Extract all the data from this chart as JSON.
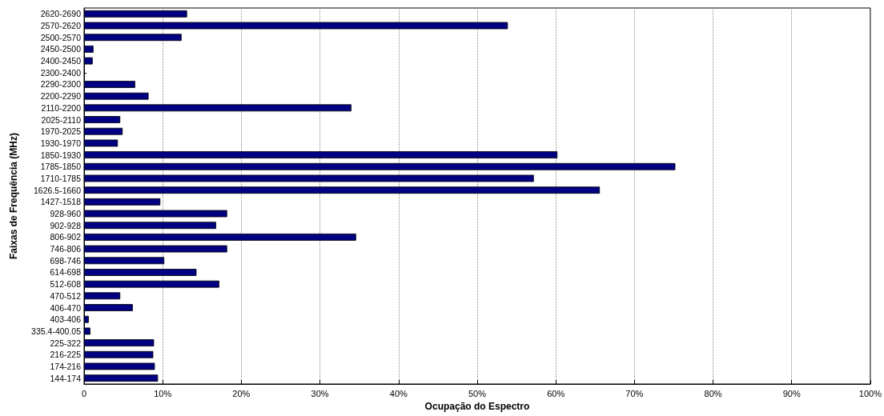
{
  "chart_data": {
    "type": "bar",
    "orientation": "horizontal",
    "xlabel": "Ocupação do Espectro",
    "ylabel": "Faixas de Frequência (MHz)",
    "categories": [
      "2620-2690",
      "2570-2620",
      "2500-2570",
      "2450-2500",
      "2400-2450",
      "2300-2400",
      "2290-2300",
      "2200-2290",
      "2110-2200",
      "2025-2110",
      "1970-2025",
      "1930-1970",
      "1850-1930",
      "1785-1850",
      "1710-1785",
      "1626.5-1660",
      "1427-1518",
      "928-960",
      "902-928",
      "806-902",
      "746-806",
      "698-746",
      "614-698",
      "512-608",
      "470-512",
      "406-470",
      "403-406",
      "335.4-400.05",
      "225-322",
      "216-225",
      "174-216",
      "144-174"
    ],
    "values": [
      13.1,
      53.9,
      12.4,
      1.2,
      1.1,
      0.1,
      6.5,
      8.2,
      34.0,
      4.6,
      4.9,
      4.3,
      60.2,
      75.2,
      57.2,
      65.6,
      9.7,
      18.2,
      16.8,
      34.6,
      18.2,
      10.2,
      14.3,
      17.2,
      4.6,
      6.2,
      0.6,
      0.8,
      8.9,
      8.8,
      9.0,
      9.4
    ],
    "color": "#000080",
    "xlim": [
      0,
      100
    ],
    "xticks": [
      0,
      {
        "value": 10,
        "label": "10%"
      },
      {
        "value": 20,
        "label": "20%"
      },
      {
        "value": 30,
        "label": "30%"
      },
      {
        "value": 40,
        "label": "40%"
      },
      {
        "value": 50,
        "label": "50%"
      },
      {
        "value": 60,
        "label": "60%"
      },
      {
        "value": 70,
        "label": "70%"
      },
      {
        "value": 80,
        "label": "80%"
      },
      {
        "value": 90,
        "label": "90%"
      },
      {
        "value": 100,
        "label": "100%"
      }
    ],
    "grid": "x"
  }
}
